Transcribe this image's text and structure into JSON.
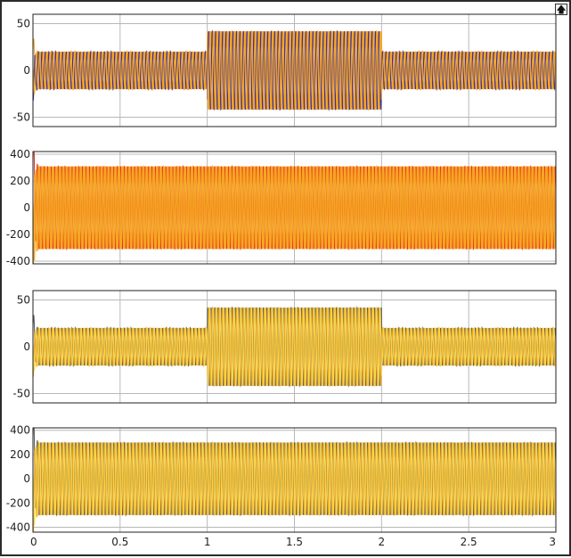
{
  "toolbar": {
    "restore_icon": "restore-axes-icon",
    "restore_glyph": "🡅"
  },
  "colors": {
    "grid": "#b8b8b8",
    "orange": "#f5a623",
    "blue": "#3b2fa6",
    "red": "#e8321f",
    "gray": "#5a5f66",
    "yellow": "#f7d84a",
    "teal": "#3aa3a0"
  },
  "chart_data": [
    {
      "type": "line",
      "title": "",
      "xlabel": "",
      "ylabel": "",
      "xlim": [
        0,
        3
      ],
      "ylim": [
        -60,
        60
      ],
      "yticks": [
        -50,
        0,
        50
      ],
      "ytick_labels": [
        "-50",
        "0",
        "50"
      ],
      "xticks": [
        0,
        0.5,
        1,
        1.5,
        2,
        2.5,
        3
      ],
      "grid": true,
      "segments": [
        {
          "t_start": 0,
          "t_end": 1,
          "amplitude": 20
        },
        {
          "t_start": 1,
          "t_end": 2,
          "amplitude": 42
        },
        {
          "t_start": 2,
          "t_end": 3,
          "amplitude": 20
        }
      ],
      "series": [
        {
          "phase": "a",
          "color": "orange"
        },
        {
          "phase": "b",
          "color": "blue"
        },
        {
          "phase": "c",
          "color": "orange"
        }
      ]
    },
    {
      "type": "line",
      "title": "",
      "xlabel": "",
      "ylabel": "",
      "xlim": [
        0,
        3
      ],
      "ylim": [
        -420,
        420
      ],
      "yticks": [
        -400,
        -200,
        0,
        200,
        400
      ],
      "ytick_labels": [
        "-400",
        "-200",
        "0",
        "200",
        "400"
      ],
      "xticks": [
        0,
        0.5,
        1,
        1.5,
        2,
        2.5,
        3
      ],
      "grid": true,
      "segments": [
        {
          "t_start": 0,
          "t_end": 3,
          "amplitude": 310
        }
      ],
      "series": [
        {
          "phase": "a",
          "color": "red"
        },
        {
          "phase": "b",
          "color": "orange"
        },
        {
          "phase": "c",
          "color": "orange"
        }
      ]
    },
    {
      "type": "line",
      "title": "",
      "xlabel": "",
      "ylabel": "",
      "xlim": [
        0,
        3
      ],
      "ylim": [
        -60,
        60
      ],
      "yticks": [
        -50,
        0,
        50
      ],
      "ytick_labels": [
        "-50",
        "0",
        "50"
      ],
      "xticks": [
        0,
        0.5,
        1,
        1.5,
        2,
        2.5,
        3
      ],
      "grid": true,
      "segments": [
        {
          "t_start": 0,
          "t_end": 1,
          "amplitude": 20
        },
        {
          "t_start": 1,
          "t_end": 2,
          "amplitude": 42
        },
        {
          "t_start": 2,
          "t_end": 3,
          "amplitude": 20
        }
      ],
      "series": [
        {
          "phase": "a",
          "color": "gray"
        },
        {
          "phase": "b",
          "color": "orange"
        },
        {
          "phase": "c",
          "color": "yellow"
        }
      ]
    },
    {
      "type": "line",
      "title": "",
      "xlabel": "",
      "ylabel": "",
      "xlim": [
        0,
        3
      ],
      "ylim": [
        -440,
        420
      ],
      "yticks": [
        -400,
        -200,
        0,
        200,
        400
      ],
      "ytick_labels": [
        "-400",
        "-200",
        "0",
        "200",
        "400"
      ],
      "xticks": [
        0,
        0.5,
        1,
        1.5,
        2,
        2.5,
        3
      ],
      "xtick_labels": [
        "0",
        "0.5",
        "1",
        "1.5",
        "2",
        "2.5",
        "3"
      ],
      "grid": true,
      "segments": [
        {
          "t_start": 0,
          "t_end": 3,
          "amplitude": 300
        }
      ],
      "series": [
        {
          "phase": "a",
          "color": "gray"
        },
        {
          "phase": "b",
          "color": "orange"
        },
        {
          "phase": "c",
          "color": "yellow"
        }
      ]
    }
  ]
}
